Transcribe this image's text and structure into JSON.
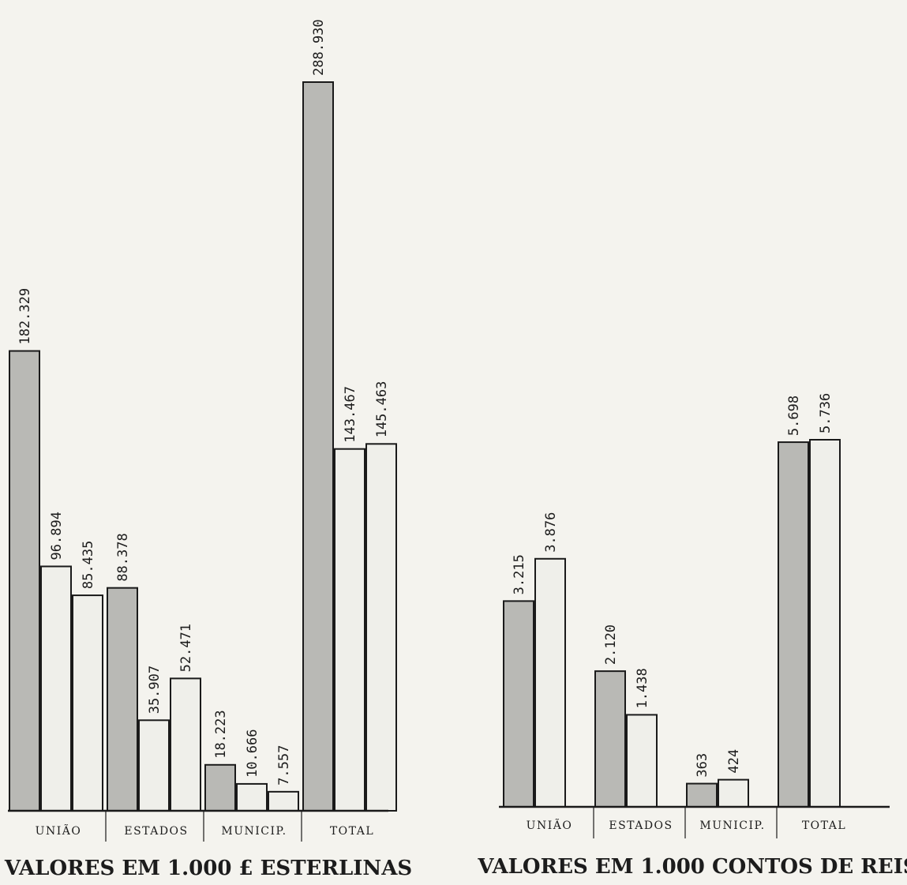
{
  "colors": {
    "dark_bar": "#b9b9b5",
    "light_bar": "#efefea",
    "stroke": "#1a1a1a",
    "background": "#f4f3ee"
  },
  "chart_data": [
    {
      "type": "bar",
      "title": "VALORES EM 1.000 £ ESTERLINAS",
      "categories": [
        "UNIÃO",
        "ESTADOS",
        "MUNICIP.",
        "TOTAL"
      ],
      "series": [
        {
          "values": [
            182.329,
            88.378,
            18.223,
            288.93
          ],
          "labels": [
            "182.329",
            "88.378",
            "18.223",
            "288.930"
          ]
        },
        {
          "values": [
            96.894,
            35.907,
            10.666,
            143.467
          ],
          "labels": [
            "96.894",
            "35.907",
            "10.666",
            "143.467"
          ]
        },
        {
          "values": [
            85.435,
            52.471,
            7.557,
            145.463
          ],
          "labels": [
            "85.435",
            "52.471",
            "7.557",
            "145.463"
          ]
        }
      ],
      "ylim": [
        0,
        288.93
      ],
      "grid": false
    },
    {
      "type": "bar",
      "title": "VALORES EM 1.000 CONTOS DE REIS",
      "categories": [
        "UNIÃO",
        "ESTADOS",
        "MUNICIP.",
        "TOTAL"
      ],
      "series": [
        {
          "values": [
            3215,
            2120,
            363,
            5698
          ],
          "labels": [
            "3.215",
            "2.120",
            "363",
            "5.698"
          ]
        },
        {
          "values": [
            3876,
            1438,
            424,
            5736
          ],
          "labels": [
            "3.876",
            "1.438",
            "424",
            "5.736"
          ]
        }
      ],
      "ylim": [
        0,
        5736
      ],
      "grid": false
    }
  ]
}
